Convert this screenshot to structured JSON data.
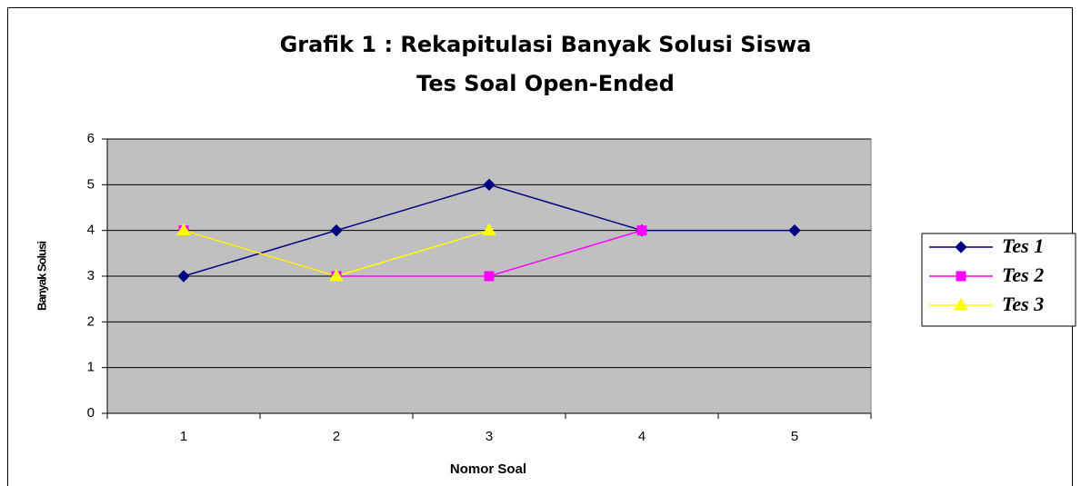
{
  "chart_data": {
    "type": "line",
    "title": "Grafik 1 : Rekapitulasi Banyak Solusi Siswa",
    "subtitle": "Tes Soal Open-Ended",
    "x_label": "Nomor Soal",
    "y_label": "Banyak Solusi",
    "categories": [
      "1",
      "2",
      "3",
      "4",
      "5"
    ],
    "series": [
      {
        "name": "Tes 1",
        "color": "#000080",
        "marker": "diamond",
        "values": [
          3,
          4,
          5,
          4,
          4
        ]
      },
      {
        "name": "Tes 2",
        "color": "#ff00ff",
        "marker": "square",
        "values": [
          4,
          3,
          3,
          4,
          null
        ]
      },
      {
        "name": "Tes 3",
        "color": "#ffff00",
        "marker": "triangle",
        "values": [
          4,
          3,
          4,
          null,
          null
        ]
      }
    ],
    "ylim": [
      0,
      6
    ],
    "yticks": [
      0,
      1,
      2,
      3,
      4,
      5,
      6
    ],
    "grid": true,
    "legend": "right",
    "plot_background": "#c0c0c0"
  }
}
